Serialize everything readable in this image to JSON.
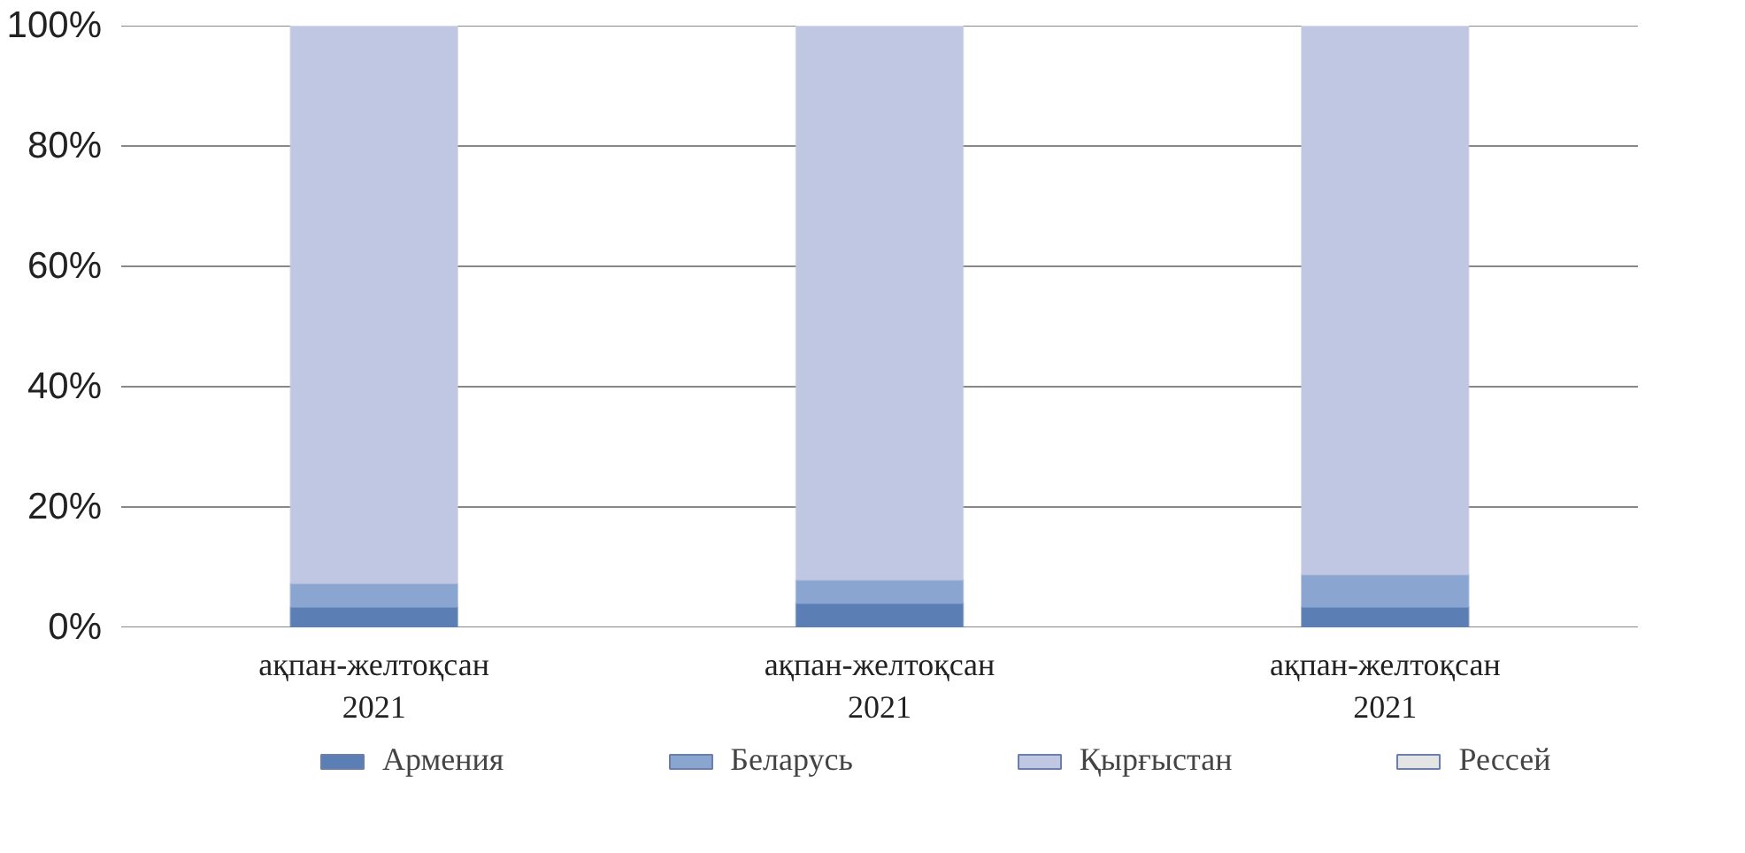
{
  "chart_data": {
    "type": "bar",
    "stacked": true,
    "categories": [
      "ақпан-желтоқсан\n2021",
      "ақпан-желтоқсан\n2021",
      "ақпан-желтоқсан\n2021"
    ],
    "series": [
      {
        "name": "Армения",
        "color": "#5b7fb5",
        "values": [
          3.4,
          4.0,
          3.4
        ]
      },
      {
        "name": "Беларусь",
        "color": "#8ba5d1",
        "values": [
          3.9,
          3.9,
          5.4
        ]
      },
      {
        "name": "Қырғыстан",
        "color": "#c0c7e2",
        "values": [
          92.7,
          92.1,
          91.2
        ]
      },
      {
        "name": "Рессей",
        "color": "#e4e4e4",
        "values": [
          0,
          0,
          0
        ]
      }
    ],
    "ylim": [
      0,
      100
    ],
    "yticks": [
      {
        "value": 0,
        "label": "0%"
      },
      {
        "value": 20,
        "label": "20%"
      },
      {
        "value": 40,
        "label": "40%"
      },
      {
        "value": 60,
        "label": "60%"
      },
      {
        "value": 80,
        "label": "80%"
      },
      {
        "value": 100,
        "label": "100%"
      }
    ],
    "grid": "y",
    "legend": "bottom"
  }
}
